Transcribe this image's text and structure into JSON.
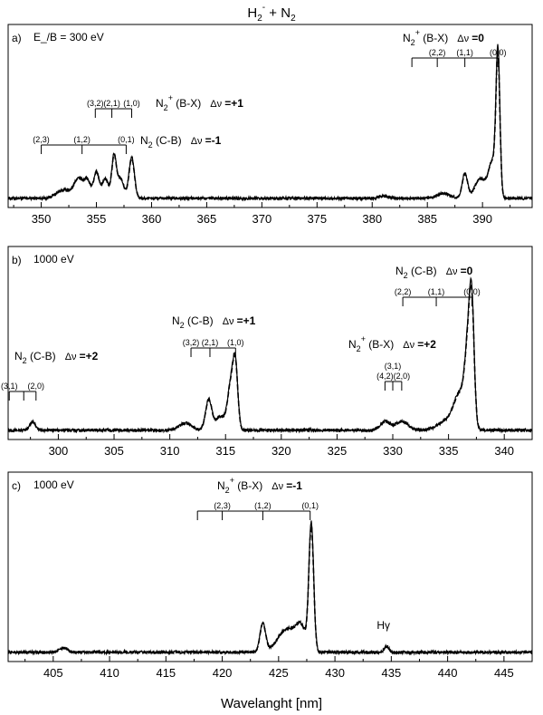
{
  "chart_data": {
    "type": "line",
    "title": "H2- + N2",
    "xlabel": "Wavelanght [nm]",
    "ylabel": "",
    "panels": [
      {
        "id": "a",
        "label": "a)",
        "note": "E_/B = 300 eV",
        "xlim": [
          347,
          394.5
        ],
        "ylim": [
          0,
          1.05
        ],
        "xticks": [
          350,
          355,
          360,
          365,
          370,
          375,
          380,
          385,
          390
        ],
        "peaks": [
          {
            "x": 352.0,
            "h": 0.05,
            "w": 0.9
          },
          {
            "x": 353.4,
            "h": 0.12,
            "w": 0.6
          },
          {
            "x": 354.2,
            "h": 0.1,
            "w": 0.4
          },
          {
            "x": 355.0,
            "h": 0.16,
            "w": 0.35
          },
          {
            "x": 355.8,
            "h": 0.12,
            "w": 0.4
          },
          {
            "x": 356.6,
            "h": 0.26,
            "w": 0.3
          },
          {
            "x": 357.2,
            "h": 0.12,
            "w": 0.4
          },
          {
            "x": 358.2,
            "h": 0.25,
            "w": 0.35
          },
          {
            "x": 381.0,
            "h": 0.015,
            "w": 0.6
          },
          {
            "x": 386.5,
            "h": 0.03,
            "w": 0.8
          },
          {
            "x": 388.4,
            "h": 0.15,
            "w": 0.35
          },
          {
            "x": 389.8,
            "h": 0.12,
            "w": 0.7
          },
          {
            "x": 390.9,
            "h": 0.22,
            "w": 0.5
          },
          {
            "x": 391.4,
            "h": 0.85,
            "w": 0.25
          }
        ],
        "annotations": [
          {
            "text": "N2+ (B-X)",
            "dv": "Δν =0",
            "levels": [
              {
                "x": 383.6,
                "label": ""
              },
              {
                "x": 385.9,
                "label": "(2,2)"
              },
              {
                "x": 388.4,
                "label": "(1,1)"
              },
              {
                "x": 391.4,
                "label": "(0,0)"
              }
            ]
          },
          {
            "text": "N2+ (B-X)",
            "dv": "Δν =+1",
            "levels": [
              {
                "x": 354.9,
                "label": "(3,2)"
              },
              {
                "x": 356.4,
                "label": "(2,1)"
              },
              {
                "x": 358.2,
                "label": "(1,0)"
              }
            ]
          },
          {
            "text": "N2 (C-B)",
            "dv": "Δν =-1",
            "levels": [
              {
                "x": 350.0,
                "label": "(2,3)"
              },
              {
                "x": 353.7,
                "label": "(1,2)"
              },
              {
                "x": 357.7,
                "label": "(0,1)"
              }
            ]
          }
        ]
      },
      {
        "id": "b",
        "label": "b)",
        "note": "1000 eV",
        "xlim": [
          295.5,
          342.5
        ],
        "ylim": [
          0,
          1.05
        ],
        "xticks": [
          300,
          305,
          310,
          315,
          320,
          325,
          330,
          335,
          340
        ],
        "peaks": [
          {
            "x": 297.7,
            "h": 0.05,
            "w": 0.35
          },
          {
            "x": 311.4,
            "h": 0.04,
            "w": 0.8
          },
          {
            "x": 313.5,
            "h": 0.18,
            "w": 0.4
          },
          {
            "x": 314.5,
            "h": 0.08,
            "w": 0.5
          },
          {
            "x": 315.5,
            "h": 0.28,
            "w": 0.45
          },
          {
            "x": 315.9,
            "h": 0.3,
            "w": 0.3
          },
          {
            "x": 329.3,
            "h": 0.05,
            "w": 0.6
          },
          {
            "x": 330.8,
            "h": 0.05,
            "w": 0.8
          },
          {
            "x": 335.0,
            "h": 0.06,
            "w": 1.2
          },
          {
            "x": 336.0,
            "h": 0.18,
            "w": 0.7
          },
          {
            "x": 336.8,
            "h": 0.48,
            "w": 0.45
          },
          {
            "x": 337.1,
            "h": 0.5,
            "w": 0.3
          }
        ],
        "annotations": [
          {
            "text": "N2 (C-B)",
            "dv": "Δν =+2",
            "levels": [
              {
                "x": 295.6,
                "label": "(3,1)"
              },
              {
                "x": 296.9,
                "label": ""
              },
              {
                "x": 298.0,
                "label": "(2,0)"
              }
            ]
          },
          {
            "text": "N2 (C-B)",
            "dv": "Δν =+1",
            "levels": [
              {
                "x": 311.9,
                "label": "(3,2)"
              },
              {
                "x": 313.6,
                "label": "(2,1)"
              },
              {
                "x": 315.9,
                "label": "(1,0)"
              }
            ]
          },
          {
            "text": "N2+ (B-X)",
            "dv": "Δν =+2",
            "levels": [
              {
                "x": 329.3,
                "label": "(4,2)"
              },
              {
                "x": 330.0,
                "label": "(3,1)"
              },
              {
                "x": 330.8,
                "label": "(2,0)"
              }
            ]
          },
          {
            "text": "N2 (C-B)",
            "dv": "Δν =0",
            "levels": [
              {
                "x": 330.9,
                "label": "(2,2)"
              },
              {
                "x": 333.9,
                "label": "(1,1)"
              },
              {
                "x": 337.1,
                "label": "(0,0)"
              }
            ]
          }
        ]
      },
      {
        "id": "c",
        "label": "c)",
        "note": "1000 eV",
        "xlim": [
          401,
          447.5
        ],
        "ylim": [
          0,
          1.05
        ],
        "xticks": [
          405,
          410,
          415,
          420,
          425,
          430,
          435,
          440,
          445
        ],
        "peaks": [
          {
            "x": 405.9,
            "h": 0.025,
            "w": 0.5
          },
          {
            "x": 423.6,
            "h": 0.17,
            "w": 0.35
          },
          {
            "x": 425.8,
            "h": 0.14,
            "w": 1.2
          },
          {
            "x": 427.0,
            "h": 0.12,
            "w": 0.6
          },
          {
            "x": 427.9,
            "h": 0.75,
            "w": 0.3
          },
          {
            "x": 434.6,
            "h": 0.035,
            "w": 0.3
          }
        ],
        "annotations": [
          {
            "text": "N2+ (B-X)",
            "dv": "Δν =-1",
            "levels": [
              {
                "x": 417.8,
                "label": ""
              },
              {
                "x": 420.0,
                "label": "(2,3)"
              },
              {
                "x": 423.6,
                "label": "(1,2)"
              },
              {
                "x": 427.8,
                "label": "(0,1)"
              }
            ]
          },
          {
            "text": "Hγ",
            "x": 434.2,
            "big": true
          }
        ]
      }
    ]
  }
}
